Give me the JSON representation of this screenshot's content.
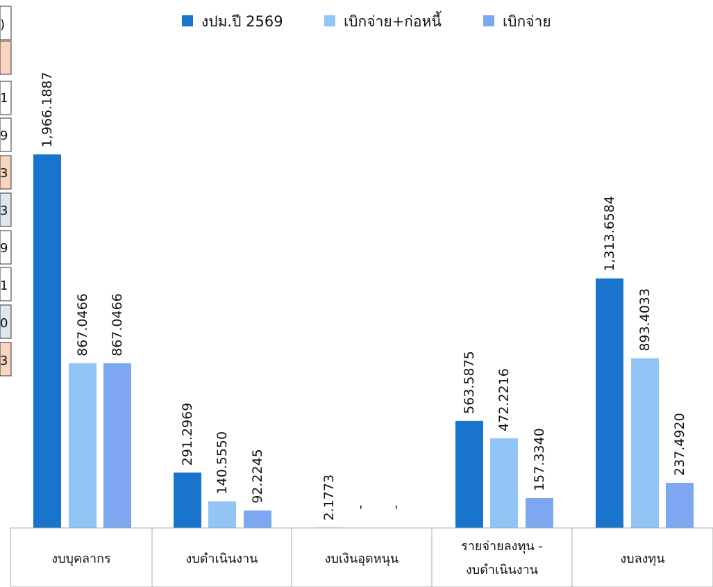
{
  "chart_data": {
    "type": "bar",
    "title": "",
    "xlabel": "",
    "ylabel": "",
    "categories": [
      [
        "งบบุคลากร"
      ],
      [
        "งบดำเนินงาน"
      ],
      [
        "งบเงินอุดหนุน"
      ],
      [
        "รายจ่ายลงทุน -",
        "งบดำเนินงาน"
      ],
      [
        "งบลงทุน"
      ]
    ],
    "series": [
      {
        "name": "งปม.ปี 2569",
        "color": "#1874CD",
        "values": [
          1966.1887,
          291.2969,
          2.1773,
          563.5875,
          1313.6584
        ],
        "labels": [
          "1,966.1887",
          "291.2969",
          "2.1773",
          "563.5875",
          "1,313.6584"
        ]
      },
      {
        "name": "เบิกจ่าย+ก่อหนี้",
        "color": "#92C5F5",
        "values": [
          867.0466,
          140.555,
          0,
          472.2216,
          893.4033
        ],
        "labels": [
          "867.0466",
          "140.5550",
          "-",
          "472.2216",
          "893.4033"
        ]
      },
      {
        "name": "เบิกจ่าย",
        "color": "#7DA7F0",
        "values": [
          867.0466,
          92.2245,
          0,
          157.334,
          237.492
        ],
        "labels": [
          "867.0466",
          "92.2245",
          "-",
          "157.3340",
          "237.4920"
        ]
      }
    ],
    "ylim": [
      0,
      2450
    ],
    "legend_position": "top-center",
    "grid": false,
    "cropped_side_table_glyphs": [
      ")",
      "1",
      "9",
      "3",
      "3",
      "9",
      "1",
      "0",
      "3"
    ]
  }
}
